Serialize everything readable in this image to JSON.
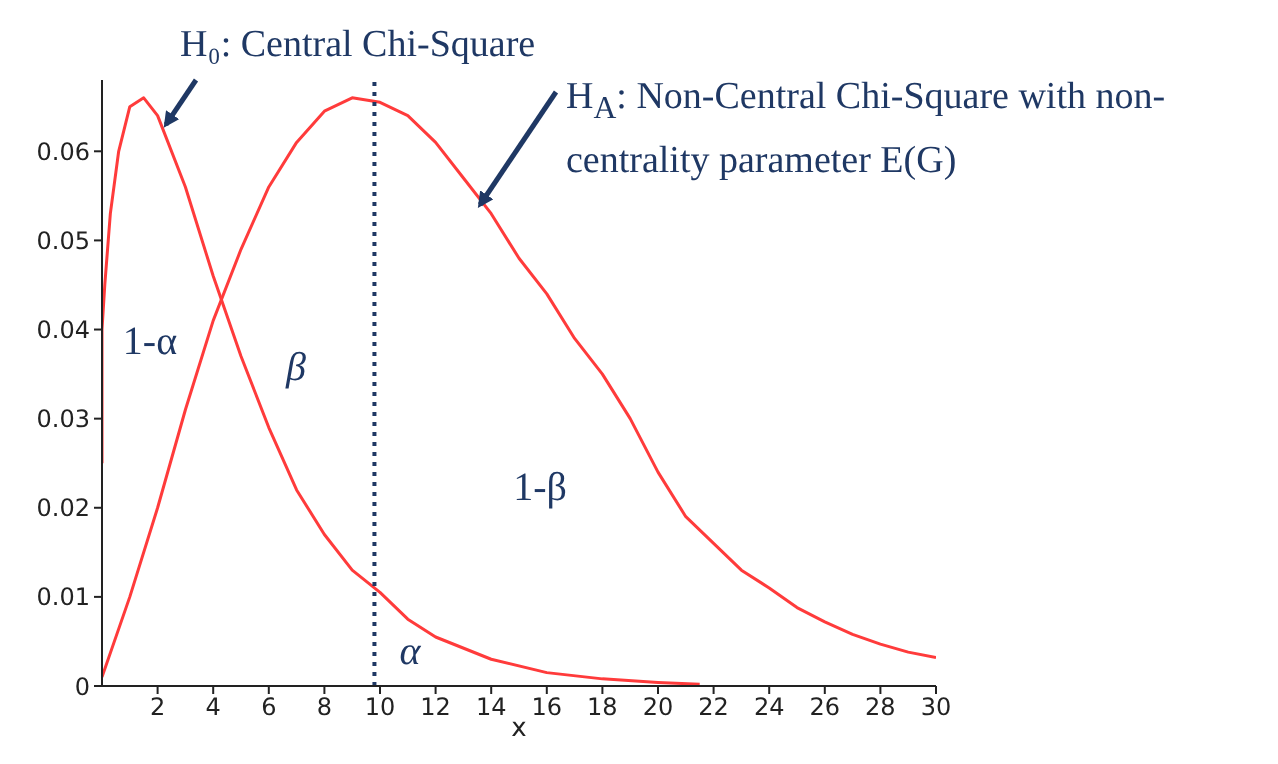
{
  "chart_data": {
    "type": "line",
    "xlabel": "x",
    "xlim": [
      0,
      30
    ],
    "xticks": [
      2,
      4,
      6,
      8,
      10,
      12,
      14,
      16,
      18,
      20,
      22,
      24,
      26,
      28,
      30
    ],
    "ylim": [
      0,
      0.068
    ],
    "yticks": [
      0,
      0.01,
      0.02,
      0.03,
      0.04,
      0.05,
      0.06
    ],
    "marker": "none",
    "line_style": "solid",
    "series": [
      {
        "color": "#ff3b3b",
        "x": [
          0,
          0,
          0.1,
          0.3,
          0.6,
          1,
          1.5,
          2,
          3,
          4,
          5,
          6,
          7,
          8,
          9,
          10,
          11,
          12,
          14,
          16,
          18,
          20,
          21.5
        ],
        "values": [
          0.025,
          0.04,
          0.045,
          0.053,
          0.06,
          0.065,
          0.066,
          0.064,
          0.056,
          0.046,
          0.037,
          0.029,
          0.022,
          0.017,
          0.013,
          0.0105,
          0.0075,
          0.0055,
          0.003,
          0.0015,
          0.0008,
          0.0004,
          0.0002
        ]
      },
      {
        "color": "#ff3b3b",
        "x": [
          0,
          1,
          2,
          3,
          4,
          5,
          6,
          7,
          8,
          9,
          10,
          11,
          12,
          13,
          14,
          15,
          16,
          17,
          18,
          19,
          20,
          21,
          22,
          23,
          24,
          25,
          26,
          27,
          28,
          29,
          30
        ],
        "values": [
          0.001,
          0.01,
          0.02,
          0.031,
          0.041,
          0.049,
          0.056,
          0.061,
          0.0645,
          0.066,
          0.0655,
          0.064,
          0.061,
          0.057,
          0.053,
          0.048,
          0.044,
          0.039,
          0.035,
          0.03,
          0.024,
          0.019,
          0.016,
          0.013,
          0.011,
          0.0088,
          0.0072,
          0.0058,
          0.0047,
          0.0038,
          0.0032
        ]
      }
    ],
    "ref_lines": [
      {
        "axis": "x",
        "value": 9.8,
        "color": "#1f3864",
        "line_style": "dotted"
      }
    ],
    "annotations": [
      {
        "text": "H₀: Central Chi-Square",
        "x": 2.3,
        "y": 0.063
      },
      {
        "text": "H$_{A}$: Non-Central Chi-Square with non-centrality parameter E(G)",
        "x": 13.6,
        "y": 0.054
      },
      "1-α",
      "β",
      "1-β",
      "α"
    ]
  }
}
